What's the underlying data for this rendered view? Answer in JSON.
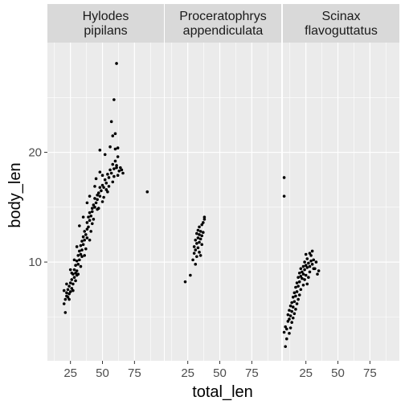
{
  "chart_data": {
    "type": "scatter",
    "xlabel": "total_len",
    "ylabel": "body_len",
    "xlim": [
      7,
      98
    ],
    "ylim": [
      1,
      30
    ],
    "x_ticks": [
      25,
      50,
      75
    ],
    "x_tick_labels": [
      "25",
      "50",
      "75"
    ],
    "y_ticks": [
      10,
      20
    ],
    "y_tick_labels": [
      "10",
      "20"
    ],
    "grid": true,
    "legend": "none",
    "point_color": "#000000",
    "panel_background": "#ebebeb",
    "strip_background": "#d9d9d9",
    "facets": [
      {
        "label_lines": [
          "Hylodes",
          "pipilans"
        ],
        "points": [
          [
            20,
            6.2
          ],
          [
            21,
            5.4
          ],
          [
            21,
            6.6
          ],
          [
            22,
            6.9
          ],
          [
            22,
            7.2
          ],
          [
            23,
            6.8
          ],
          [
            23,
            7.5
          ],
          [
            24,
            7.1
          ],
          [
            24,
            7.8
          ],
          [
            25,
            7.3
          ],
          [
            25,
            8.1
          ],
          [
            26,
            7.6
          ],
          [
            26,
            8.4
          ],
          [
            27,
            8.9
          ],
          [
            27,
            8.0
          ],
          [
            28,
            8.6
          ],
          [
            28,
            9.3
          ],
          [
            29,
            9.0
          ],
          [
            29,
            9.7
          ],
          [
            30,
            9.2
          ],
          [
            30,
            10.1
          ],
          [
            31,
            9.8
          ],
          [
            31,
            10.6
          ],
          [
            32,
            10.2
          ],
          [
            32,
            11.0
          ],
          [
            33,
            10.7
          ],
          [
            33,
            11.5
          ],
          [
            34,
            11.1
          ],
          [
            34,
            11.9
          ],
          [
            35,
            11.6
          ],
          [
            35,
            12.3
          ],
          [
            36,
            12.0
          ],
          [
            36,
            12.8
          ],
          [
            37,
            12.5
          ],
          [
            38,
            13.0
          ],
          [
            38,
            13.6
          ],
          [
            39,
            13.2
          ],
          [
            39,
            14.1
          ],
          [
            40,
            13.8
          ],
          [
            40,
            14.5
          ],
          [
            41,
            14.2
          ],
          [
            42,
            14.9
          ],
          [
            42,
            14.6
          ],
          [
            43,
            15.2
          ],
          [
            44,
            15.0
          ],
          [
            44,
            15.8
          ],
          [
            45,
            15.4
          ],
          [
            46,
            16.1
          ],
          [
            46,
            15.7
          ],
          [
            47,
            16.3
          ],
          [
            48,
            16.0
          ],
          [
            48,
            16.8
          ],
          [
            49,
            16.5
          ],
          [
            50,
            17.0
          ],
          [
            51,
            16.8
          ],
          [
            52,
            17.5
          ],
          [
            53,
            17.2
          ],
          [
            54,
            18.0
          ],
          [
            55,
            17.7
          ],
          [
            56,
            18.4
          ],
          [
            57,
            18.1
          ],
          [
            58,
            18.9
          ],
          [
            59,
            18.5
          ],
          [
            60,
            19.2
          ],
          [
            61,
            18.8
          ],
          [
            62,
            19.6
          ],
          [
            63,
            18.3
          ],
          [
            64,
            18.6
          ],
          [
            20,
            7.4
          ],
          [
            24,
            6.6
          ],
          [
            26,
            9.0
          ],
          [
            30,
            8.8
          ],
          [
            34,
            10.5
          ],
          [
            38,
            12.2
          ],
          [
            42,
            13.5
          ],
          [
            46,
            14.8
          ],
          [
            50,
            15.5
          ],
          [
            54,
            16.4
          ],
          [
            58,
            17.3
          ],
          [
            62,
            17.9
          ],
          [
            48,
            20.2
          ],
          [
            52,
            19.8
          ],
          [
            56,
            20.5
          ],
          [
            60,
            20.3
          ],
          [
            58,
            21.5
          ],
          [
            60,
            21.7
          ],
          [
            62,
            20.4
          ],
          [
            57,
            22.8
          ],
          [
            59,
            24.8
          ],
          [
            61,
            28.1
          ],
          [
            65,
            18.4
          ],
          [
            66,
            18.1
          ],
          [
            85,
            16.4
          ],
          [
            45,
            17.6
          ],
          [
            48,
            18.2
          ],
          [
            50,
            17.9
          ],
          [
            35,
            14.1
          ],
          [
            32,
            13.3
          ],
          [
            38,
            15.4
          ],
          [
            40,
            16.0
          ],
          [
            44,
            16.9
          ],
          [
            36,
            10.6
          ],
          [
            40,
            12.0
          ],
          [
            30,
            11.4
          ],
          [
            28,
            10.2
          ],
          [
            25,
            9.3
          ],
          [
            33,
            9.6
          ],
          [
            37,
            11.2
          ],
          [
            41,
            12.8
          ],
          [
            43,
            13.9
          ],
          [
            47,
            14.9
          ],
          [
            51,
            15.9
          ],
          [
            53,
            16.6
          ],
          [
            55,
            16.9
          ],
          [
            59,
            17.8
          ],
          [
            61,
            18.6
          ],
          [
            22,
            8.0
          ],
          [
            27,
            7.4
          ],
          [
            29,
            8.3
          ],
          [
            31,
            8.9
          ]
        ]
      },
      {
        "label_lines": [
          "Proceratophrys",
          "appendiculata"
        ],
        "points": [
          [
            23,
            8.2
          ],
          [
            27,
            8.8
          ],
          [
            29,
            10.2
          ],
          [
            30,
            10.8
          ],
          [
            30,
            11.4
          ],
          [
            31,
            11.1
          ],
          [
            31,
            12.0
          ],
          [
            32,
            10.5
          ],
          [
            32,
            11.7
          ],
          [
            32,
            12.6
          ],
          [
            33,
            11.3
          ],
          [
            33,
            12.2
          ],
          [
            33,
            12.9
          ],
          [
            34,
            11.8
          ],
          [
            34,
            12.5
          ],
          [
            34,
            13.2
          ],
          [
            35,
            12.1
          ],
          [
            35,
            12.8
          ],
          [
            36,
            12.4
          ],
          [
            36,
            13.4
          ],
          [
            37,
            12.7
          ],
          [
            37,
            13.6
          ],
          [
            38,
            13.9
          ],
          [
            38,
            14.1
          ],
          [
            35,
            10.6
          ],
          [
            36,
            11.6
          ],
          [
            34,
            10.9
          ],
          [
            31,
            9.8
          ]
        ]
      },
      {
        "label_lines": [
          "Scinax",
          "flavoguttatus"
        ],
        "points": [
          [
            8,
            17.7
          ],
          [
            8,
            16.0
          ],
          [
            8,
            3.6
          ],
          [
            9,
            4.1
          ],
          [
            9,
            2.3
          ],
          [
            10,
            3.0
          ],
          [
            10,
            3.9
          ],
          [
            11,
            4.6
          ],
          [
            11,
            5.2
          ],
          [
            12,
            4.8
          ],
          [
            12,
            5.6
          ],
          [
            13,
            5.1
          ],
          [
            13,
            6.0
          ],
          [
            14,
            5.5
          ],
          [
            14,
            6.3
          ],
          [
            15,
            5.9
          ],
          [
            15,
            6.8
          ],
          [
            16,
            6.4
          ],
          [
            16,
            7.2
          ],
          [
            17,
            6.9
          ],
          [
            17,
            7.7
          ],
          [
            18,
            7.3
          ],
          [
            18,
            8.1
          ],
          [
            19,
            7.8
          ],
          [
            19,
            8.6
          ],
          [
            20,
            8.2
          ],
          [
            20,
            9.0
          ],
          [
            21,
            8.7
          ],
          [
            21,
            9.4
          ],
          [
            22,
            9.1
          ],
          [
            22,
            8.5
          ],
          [
            23,
            9.6
          ],
          [
            23,
            8.9
          ],
          [
            24,
            9.3
          ],
          [
            24,
            10.0
          ],
          [
            25,
            9.7
          ],
          [
            25,
            8.8
          ],
          [
            26,
            10.3
          ],
          [
            26,
            9.5
          ],
          [
            27,
            9.9
          ],
          [
            27,
            8.6
          ],
          [
            28,
            10.8
          ],
          [
            28,
            9.6
          ],
          [
            29,
            10.1
          ],
          [
            30,
            11.0
          ],
          [
            30,
            9.8
          ],
          [
            31,
            10.2
          ],
          [
            32,
            9.4
          ],
          [
            33,
            10.0
          ],
          [
            34,
            8.9
          ],
          [
            35,
            9.2
          ],
          [
            14,
            4.5
          ],
          [
            16,
            5.3
          ],
          [
            18,
            6.2
          ],
          [
            20,
            7.0
          ],
          [
            12,
            3.5
          ],
          [
            13,
            4.0
          ],
          [
            15,
            4.9
          ],
          [
            17,
            5.7
          ],
          [
            19,
            6.6
          ],
          [
            21,
            7.5
          ],
          [
            23,
            7.9
          ],
          [
            24,
            8.4
          ],
          [
            26,
            8.0
          ],
          [
            28,
            9.1
          ],
          [
            29,
            10.6
          ],
          [
            31,
            9.4
          ],
          [
            25,
            10.7
          ]
        ]
      }
    ]
  }
}
